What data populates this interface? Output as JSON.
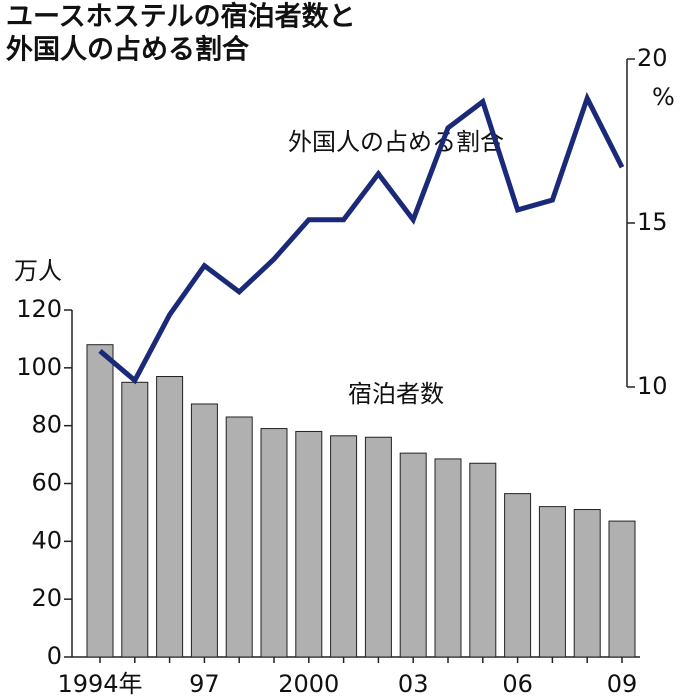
{
  "chart_data": {
    "type": "combo",
    "title": [
      "ユースホステルの宿泊者数と",
      "外国人の占める割合"
    ],
    "y_label": "万人",
    "y2_label": "%",
    "categories": [
      "1994年",
      null,
      null,
      "97",
      null,
      null,
      "2000",
      null,
      null,
      "03",
      null,
      null,
      "06",
      null,
      null,
      "09"
    ],
    "series": [
      {
        "name": "宿泊者数",
        "type": "bar",
        "color": "#b0b0b0",
        "values": [
          108,
          95,
          97,
          87.5,
          83,
          79,
          78,
          76.5,
          76,
          70.5,
          68.5,
          67,
          56.5,
          52,
          51,
          47
        ]
      },
      {
        "name": "外国人の占める割合",
        "type": "line",
        "axis": "y2",
        "color": "#1a2a78",
        "values": [
          11.1,
          10.2,
          12.2,
          13.7,
          12.9,
          13.9,
          15.1,
          15.1,
          16.5,
          15.1,
          17.9,
          18.7,
          15.4,
          15.7,
          18.8,
          16.7
        ]
      }
    ],
    "ylim": [
      0,
      120
    ],
    "yticks": [
      0,
      20,
      40,
      60,
      80,
      100,
      120
    ],
    "y2lim": [
      10,
      20
    ],
    "y2ticks": [
      10,
      15,
      20
    ]
  }
}
